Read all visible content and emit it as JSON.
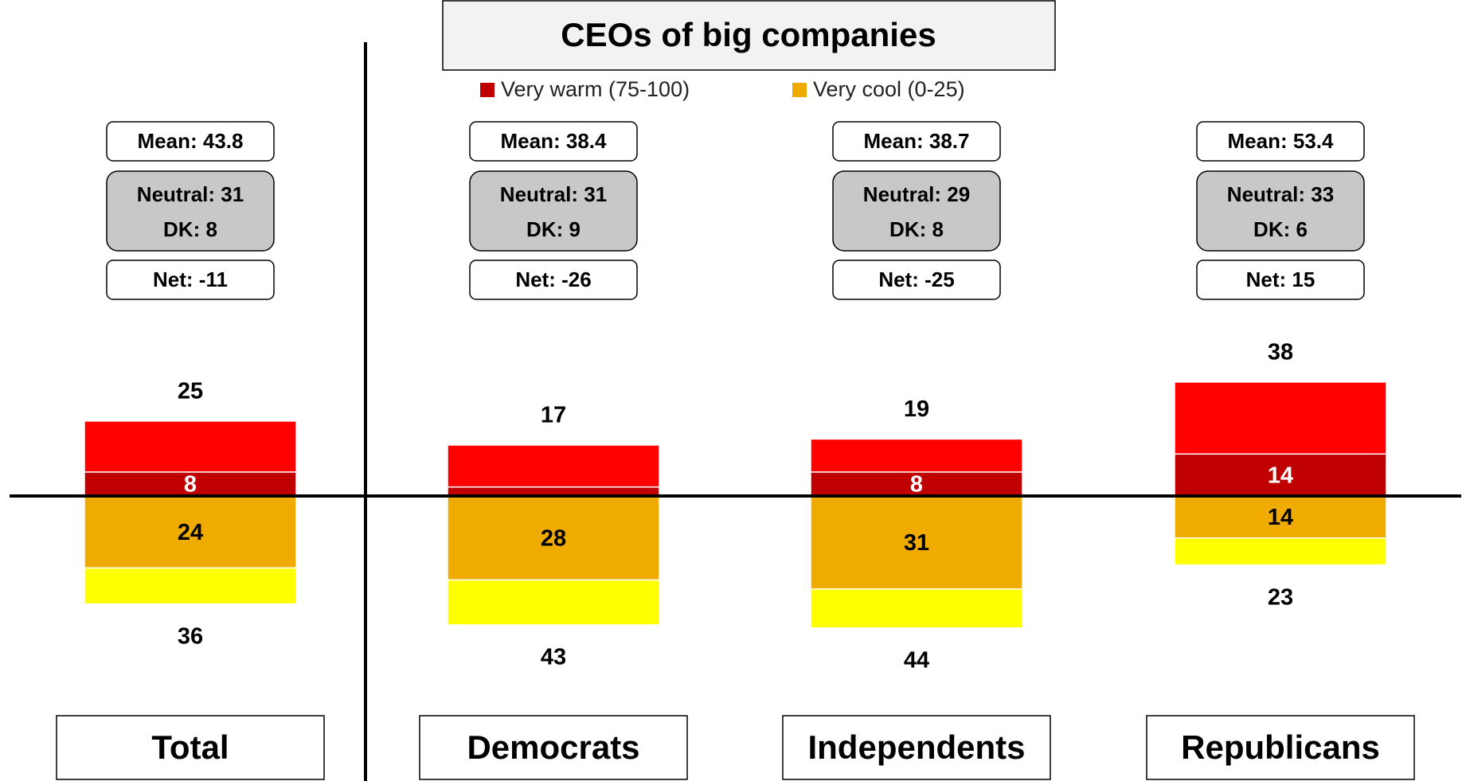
{
  "chart_data": {
    "type": "diverging_stacked_bar",
    "title": "CEOs of big companies",
    "categories": [
      "Total",
      "Democrats",
      "Independents",
      "Republicans"
    ],
    "series": [
      {
        "name": "Very warm (75-100)",
        "color": "#c00000",
        "side": "up",
        "values": [
          8,
          3,
          8,
          14
        ],
        "value_labels": [
          "8",
          null,
          "8",
          "14"
        ],
        "label_color": "#ffffff"
      },
      {
        "color": "#ff0000",
        "side": "up",
        "values": [
          17,
          14,
          11,
          24
        ]
      },
      {
        "name": "Very cool (0-25)",
        "color": "#f0ab00",
        "side": "down",
        "values": [
          24,
          28,
          31,
          14
        ],
        "value_labels": [
          "24",
          "28",
          "31",
          "14"
        ],
        "label_color": "#000000"
      },
      {
        "color": "#ffff00",
        "side": "down",
        "values": [
          12,
          15,
          13,
          9
        ]
      }
    ],
    "warm_totals": [
      25,
      17,
      19,
      38
    ],
    "cool_totals": [
      36,
      43,
      44,
      23
    ],
    "mean_labels": [
      "Mean: 43.8",
      "Mean: 38.4",
      "Mean: 38.7",
      "Mean: 53.4"
    ],
    "neutral_labels": [
      "Neutral: 31",
      "Neutral: 31",
      "Neutral: 29",
      "Neutral: 33"
    ],
    "dk_labels": [
      "DK: 8",
      "DK: 9",
      "DK: 8",
      "DK: 6"
    ],
    "net_labels": [
      "Net: -11",
      "Net: -26",
      "Net: -25",
      "Net: 15"
    ],
    "ylim": [
      -60,
      60
    ]
  }
}
